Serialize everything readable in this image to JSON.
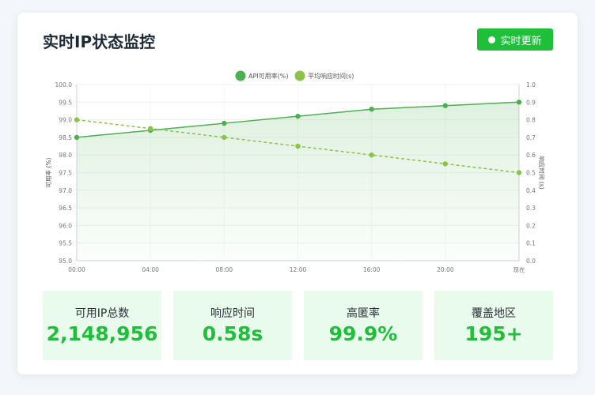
{
  "header": {
    "title": "实时IP状态监控",
    "live_button_label": "实时更新"
  },
  "colors": {
    "accent": "#1fbf3a",
    "availability_line": "#4caf50",
    "response_line": "#8bc34a",
    "stat_bg": "#e9fbec"
  },
  "chart_data": {
    "type": "line",
    "categories": [
      "00:00",
      "04:00",
      "08:00",
      "12:00",
      "16:00",
      "20:00",
      "现在"
    ],
    "series": [
      {
        "name": "API可用率(%)",
        "axis": "left",
        "style": "solid-area",
        "values": [
          98.5,
          98.7,
          98.9,
          99.1,
          99.3,
          99.4,
          99.5
        ]
      },
      {
        "name": "平均响应时间(s)",
        "axis": "right",
        "style": "dashed",
        "values": [
          0.8,
          0.75,
          0.7,
          0.65,
          0.6,
          0.55,
          0.5
        ]
      }
    ],
    "ylabel": "可用率 (%)",
    "y2label": "响应时间 (s)",
    "ylim": [
      95.0,
      100.0
    ],
    "y2lim": [
      0.0,
      1.0
    ],
    "yticks": [
      "95.0",
      "95.5",
      "96.0",
      "96.5",
      "97.0",
      "97.5",
      "98.0",
      "98.5",
      "99.0",
      "99.5",
      "100.0"
    ],
    "y2ticks": [
      "0.0",
      "0.1",
      "0.2",
      "0.3",
      "0.4",
      "0.5",
      "0.6",
      "0.7",
      "0.8",
      "0.9",
      "1.0"
    ],
    "legend_position": "top-center",
    "grid": true
  },
  "stats": [
    {
      "label": "可用IP总数",
      "value": "2,148,956"
    },
    {
      "label": "响应时间",
      "value": "0.58s"
    },
    {
      "label": "高匿率",
      "value": "99.9%"
    },
    {
      "label": "覆盖地区",
      "value": "195+"
    }
  ]
}
